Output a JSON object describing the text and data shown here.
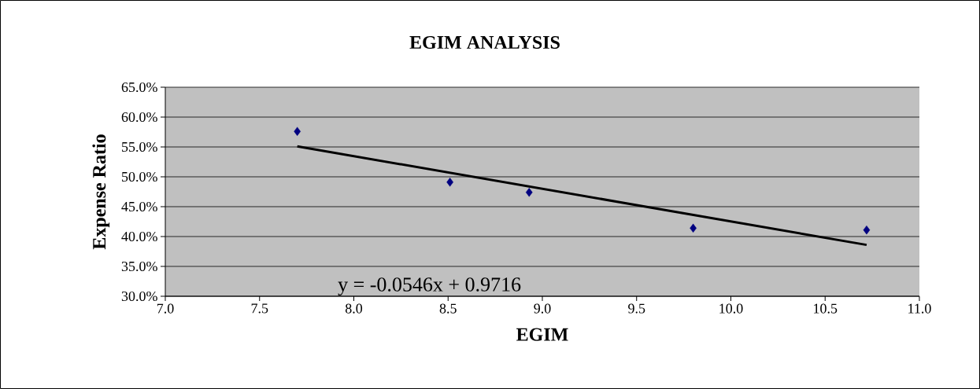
{
  "chart_data": {
    "type": "scatter",
    "title": "EGIM ANALYSIS",
    "xlabel": "EGIM",
    "ylabel": "Expense Ratio",
    "series": [
      {
        "color": "#000080",
        "marker": "diamond",
        "x": [
          7.7,
          8.51,
          8.93,
          9.8,
          10.72
        ],
        "values": [
          57.6,
          49.1,
          47.4,
          41.4,
          41.1
        ]
      },
      {
        "type": "line",
        "color": "#000000",
        "x": [
          7.7,
          10.72
        ],
        "values": [
          55.1,
          38.6
        ]
      }
    ],
    "xlim": [
      7,
      11
    ],
    "ylim": [
      30,
      65
    ],
    "xticks": [
      {
        "value": 7,
        "label": "7.0"
      },
      {
        "value": 7.5,
        "label": "7.5"
      },
      {
        "value": 8,
        "label": "8.0"
      },
      {
        "value": 8.5,
        "label": "8.5"
      },
      {
        "value": 9,
        "label": "9.0"
      },
      {
        "value": 9.5,
        "label": "9.5"
      },
      {
        "value": 10,
        "label": "10.0"
      },
      {
        "value": 10.5,
        "label": "10.5"
      },
      {
        "value": 11,
        "label": "11.0"
      }
    ],
    "yticks": [
      {
        "value": 30,
        "label": "30.0%"
      },
      {
        "value": 35,
        "label": "35.0%"
      },
      {
        "value": 40,
        "label": "40.0%"
      },
      {
        "value": 45,
        "label": "45.0%"
      },
      {
        "value": 50,
        "label": "50.0%"
      },
      {
        "value": 55,
        "label": "55.0%"
      },
      {
        "value": 60,
        "label": "60.0%"
      },
      {
        "value": 65,
        "label": "65.0%"
      }
    ],
    "grid": "y",
    "annotations": [
      "y = -0.0546x  + 0.9716"
    ]
  }
}
